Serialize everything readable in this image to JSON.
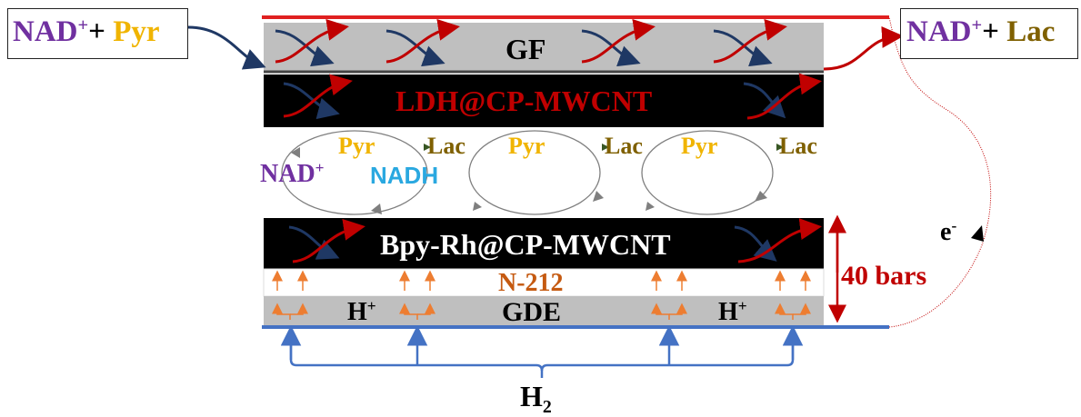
{
  "colors": {
    "purple": "#7030a0",
    "yellow": "#f0b400",
    "olive": "#7f6000",
    "red": "#c00000",
    "cyan": "#2aa8e0",
    "orange": "#ed7d31",
    "blue": "#4472c4",
    "navy": "#1f3864",
    "gray": "#bfbfbf",
    "black": "#000000"
  },
  "left_box": {
    "nad": "NAD",
    "plus_sup": "+",
    "plus": "+ ",
    "pyr": "Pyr"
  },
  "right_box": {
    "nad": "NAD",
    "plus_sup": "+",
    "plus": "+ ",
    "lac": "Lac"
  },
  "layers": {
    "gf": "GF",
    "ldh": "LDH@CP-MWCNT",
    "bpy": "Bpy-Rh@CP-MWCNT",
    "membrane": "N-212",
    "gde": "GDE"
  },
  "cycles": {
    "nad": "NAD",
    "nad_sup": "+",
    "nadh": "NADH",
    "pyr": "Pyr",
    "lac": "Lac"
  },
  "protons": {
    "h": "H",
    "sup": "+"
  },
  "electron": {
    "e": "e",
    "sup": "-"
  },
  "pressure": "40 bars",
  "hydrogen": {
    "h": "H",
    "sub": "2"
  }
}
